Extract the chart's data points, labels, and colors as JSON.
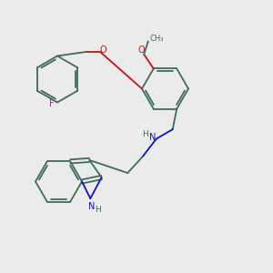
{
  "bg_color": "#ebebeb",
  "bond_color": "#3d6b5e",
  "n_color": "#1010cc",
  "o_color": "#cc1010",
  "f_color": "#cc00cc",
  "line_width": 1.3,
  "figsize": [
    3.0,
    3.0
  ],
  "dpi": 100,
  "xlim": [
    0,
    10
  ],
  "ylim": [
    0,
    10
  ]
}
